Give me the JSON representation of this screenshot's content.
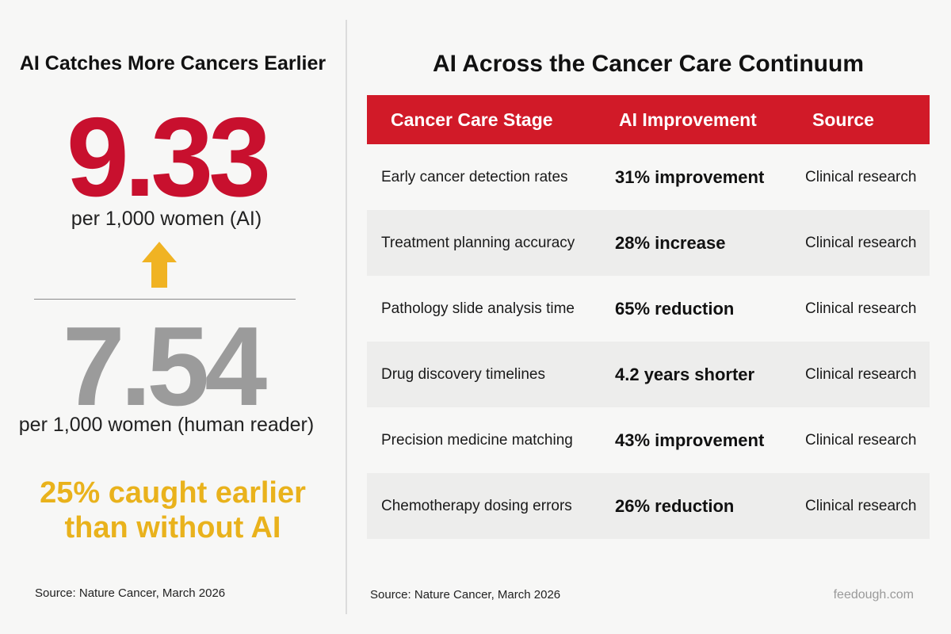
{
  "colors": {
    "accent_red": "#c8102e",
    "stat_gray": "#9b9b9b",
    "highlight_yellow": "#e9b21c",
    "arrow_yellow": "#f0b323",
    "header_bg": "#d11a28"
  },
  "left": {
    "title": "AI Catches More Cancers Earlier",
    "ai_value": "9.33",
    "ai_caption": "per 1,000 women (AI)",
    "arrow_icon": "up-arrow-icon",
    "human_value": "7.54",
    "human_caption": "per 1,000 women (human reader)",
    "earlier_line1": "25% caught earlier",
    "earlier_line2": "than without AI",
    "source": "Source: Nature Cancer, March 2026"
  },
  "right": {
    "title": "AI Across the Cancer Care Continuum",
    "columns": [
      "Cancer Care Stage",
      "AI Improvement",
      "Source"
    ],
    "rows": [
      {
        "stage": "Early cancer detection rates",
        "improvement": "31% improvement",
        "source": "Clinical research"
      },
      {
        "stage": "Treatment planning accuracy",
        "improvement": "28% increase",
        "source": "Clinical research"
      },
      {
        "stage": "Pathology slide analysis time",
        "improvement": "65% reduction",
        "source": "Clinical research"
      },
      {
        "stage": "Drug discovery timelines",
        "improvement": "4.2 years shorter",
        "source": "Clinical research"
      },
      {
        "stage": "Precision medicine matching",
        "improvement": "43% improvement",
        "source": "Clinical research"
      },
      {
        "stage": "Chemotherapy dosing errors",
        "improvement": "26% reduction",
        "source": "Clinical research"
      }
    ],
    "source": "Source: Nature Cancer, March 2026",
    "watermark": "feedough.com"
  }
}
